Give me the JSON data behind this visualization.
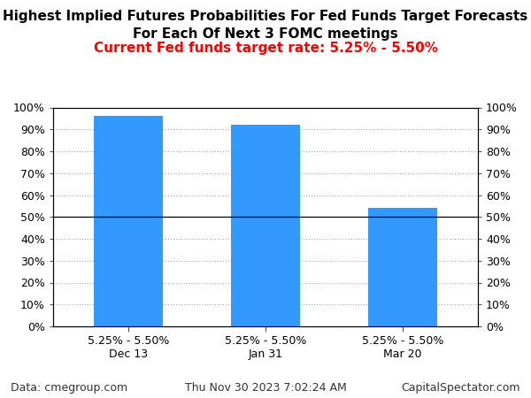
{
  "title_line1": "Highest Implied Futures Probabilities For Fed Funds Target Forecasts",
  "title_line2": "For Each Of Next 3 FOMC meetings",
  "subtitle": "Current Fed funds target rate: 5.25% - 5.50%",
  "subtitle_color": "#FF0000",
  "bar_labels": [
    "5.25% - 5.50%\nDec 13",
    "5.25% - 5.50%\nJan 31",
    "5.25% - 5.50%\nMar 20"
  ],
  "bar_values": [
    96,
    92,
    54
  ],
  "bar_color": "#3399FF",
  "ylim": [
    0,
    100
  ],
  "yticks": [
    0,
    10,
    20,
    30,
    40,
    50,
    60,
    70,
    80,
    90,
    100
  ],
  "hline_y": 50,
  "hline_color": "#000000",
  "grid_color": "#AAAAAA",
  "footer_left": "Data: cmegroup.com",
  "footer_center": "Thu Nov 30 2023 7:02:24 AM",
  "footer_right": "CapitalSpectator.com",
  "title_fontsize": 11,
  "subtitle_fontsize": 11,
  "footer_fontsize": 9,
  "tick_fontsize": 9,
  "bar_width": 0.5,
  "bg_color": "#FFFFFF"
}
